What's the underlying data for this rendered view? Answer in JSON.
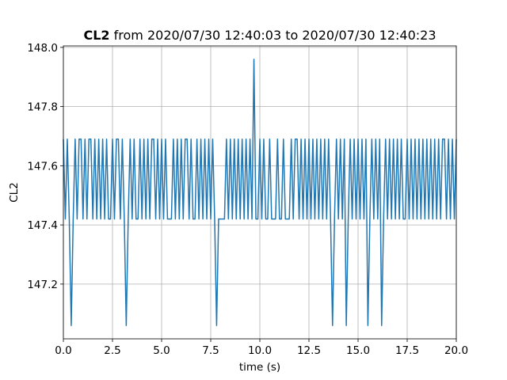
{
  "chart_data": {
    "type": "line",
    "title_name": "CL2",
    "title_range": "from 2020/07/30 12:40:03 to 2020/07/30 12:40:23",
    "xlabel": "time (s)",
    "ylabel": "CL2",
    "xlim": [
      0,
      20
    ],
    "ylim": [
      147.015,
      148.005
    ],
    "xticks": [
      {
        "value": 0,
        "label": "0.0"
      },
      2.5,
      {
        "value": 5,
        "label": "5.0"
      },
      7.5,
      {
        "value": 10,
        "label": "10.0"
      },
      12.5,
      {
        "value": 15,
        "label": "15.0"
      },
      17.5,
      {
        "value": 20,
        "label": "20.0"
      }
    ],
    "yticks": [
      147.2,
      147.4,
      147.6,
      147.8,
      {
        "value": 148,
        "label": "148.0"
      }
    ],
    "grid": true,
    "x": [
      0,
      0.1,
      0.2,
      0.3,
      0.4,
      0.5,
      0.6,
      0.7,
      0.8,
      0.9,
      1,
      1.1,
      1.2,
      1.3,
      1.4,
      1.5,
      1.6,
      1.7,
      1.8,
      1.9,
      2,
      2.1,
      2.2,
      2.3,
      2.4,
      2.5,
      2.6,
      2.7,
      2.8,
      2.9,
      3,
      3.1,
      3.2,
      3.3,
      3.4,
      3.5,
      3.6,
      3.7,
      3.8,
      3.9,
      4,
      4.1,
      4.2,
      4.3,
      4.4,
      4.5,
      4.6,
      4.7,
      4.8,
      4.9,
      5,
      5.1,
      5.2,
      5.3,
      5.4,
      5.5,
      5.6,
      5.7,
      5.8,
      5.9,
      6,
      6.1,
      6.2,
      6.3,
      6.4,
      6.5,
      6.6,
      6.7,
      6.8,
      6.9,
      7,
      7.1,
      7.2,
      7.3,
      7.4,
      7.5,
      7.6,
      7.7,
      7.8,
      7.9,
      8,
      8.1,
      8.2,
      8.3,
      8.4,
      8.5,
      8.6,
      8.7,
      8.8,
      8.9,
      9,
      9.1,
      9.2,
      9.3,
      9.4,
      9.5,
      9.6,
      9.7,
      9.8,
      9.9,
      10,
      10.1,
      10.2,
      10.3,
      10.4,
      10.5,
      10.6,
      10.7,
      10.8,
      10.9,
      11,
      11.1,
      11.2,
      11.3,
      11.4,
      11.5,
      11.6,
      11.7,
      11.8,
      11.9,
      12,
      12.1,
      12.2,
      12.3,
      12.4,
      12.5,
      12.6,
      12.7,
      12.8,
      12.9,
      13,
      13.1,
      13.2,
      13.3,
      13.4,
      13.5,
      13.6,
      13.7,
      13.8,
      13.9,
      14,
      14.1,
      14.2,
      14.3,
      14.4,
      14.5,
      14.6,
      14.7,
      14.8,
      14.9,
      15,
      15.1,
      15.2,
      15.3,
      15.4,
      15.5,
      15.6,
      15.7,
      15.8,
      15.9,
      16,
      16.1,
      16.2,
      16.3,
      16.4,
      16.5,
      16.6,
      16.7,
      16.8,
      16.9,
      17,
      17.1,
      17.2,
      17.3,
      17.4,
      17.5,
      17.6,
      17.7,
      17.8,
      17.9,
      18,
      18.1,
      18.2,
      18.3,
      18.4,
      18.5,
      18.6,
      18.7,
      18.8,
      18.9,
      19,
      19.1,
      19.2,
      19.3,
      19.4,
      19.5,
      19.6,
      19.7,
      19.8,
      19.9,
      20
    ],
    "series": [
      {
        "color": "#1f77b4",
        "values": [
          147.69,
          147.42,
          147.69,
          147.42,
          147.06,
          147.42,
          147.69,
          147.42,
          147.69,
          147.69,
          147.42,
          147.69,
          147.42,
          147.69,
          147.69,
          147.42,
          147.69,
          147.42,
          147.69,
          147.42,
          147.69,
          147.42,
          147.69,
          147.42,
          147.42,
          147.69,
          147.42,
          147.69,
          147.69,
          147.42,
          147.69,
          147.42,
          147.06,
          147.42,
          147.69,
          147.42,
          147.69,
          147.42,
          147.42,
          147.69,
          147.42,
          147.69,
          147.42,
          147.69,
          147.42,
          147.69,
          147.69,
          147.42,
          147.69,
          147.42,
          147.69,
          147.42,
          147.69,
          147.42,
          147.42,
          147.42,
          147.69,
          147.42,
          147.69,
          147.42,
          147.69,
          147.42,
          147.69,
          147.69,
          147.42,
          147.69,
          147.42,
          147.42,
          147.69,
          147.42,
          147.69,
          147.42,
          147.69,
          147.42,
          147.69,
          147.42,
          147.69,
          147.42,
          147.06,
          147.42,
          147.42,
          147.42,
          147.42,
          147.69,
          147.42,
          147.69,
          147.42,
          147.69,
          147.42,
          147.69,
          147.42,
          147.69,
          147.42,
          147.69,
          147.42,
          147.69,
          147.42,
          147.96,
          147.42,
          147.42,
          147.69,
          147.42,
          147.69,
          147.42,
          147.42,
          147.69,
          147.42,
          147.42,
          147.42,
          147.69,
          147.42,
          147.42,
          147.69,
          147.42,
          147.42,
          147.42,
          147.69,
          147.42,
          147.69,
          147.69,
          147.42,
          147.69,
          147.42,
          147.69,
          147.42,
          147.69,
          147.42,
          147.69,
          147.42,
          147.69,
          147.42,
          147.69,
          147.42,
          147.69,
          147.42,
          147.69,
          147.42,
          147.06,
          147.42,
          147.69,
          147.42,
          147.69,
          147.42,
          147.69,
          147.06,
          147.42,
          147.69,
          147.42,
          147.69,
          147.42,
          147.69,
          147.42,
          147.69,
          147.42,
          147.69,
          147.06,
          147.42,
          147.69,
          147.42,
          147.69,
          147.42,
          147.69,
          147.06,
          147.42,
          147.69,
          147.42,
          147.69,
          147.42,
          147.69,
          147.42,
          147.69,
          147.42,
          147.69,
          147.42,
          147.42,
          147.69,
          147.42,
          147.69,
          147.42,
          147.69,
          147.42,
          147.69,
          147.42,
          147.69,
          147.42,
          147.69,
          147.42,
          147.69,
          147.42,
          147.69,
          147.42,
          147.69,
          147.42,
          147.69,
          147.69,
          147.42,
          147.69,
          147.42,
          147.69,
          147.42,
          147.69
        ]
      }
    ]
  }
}
